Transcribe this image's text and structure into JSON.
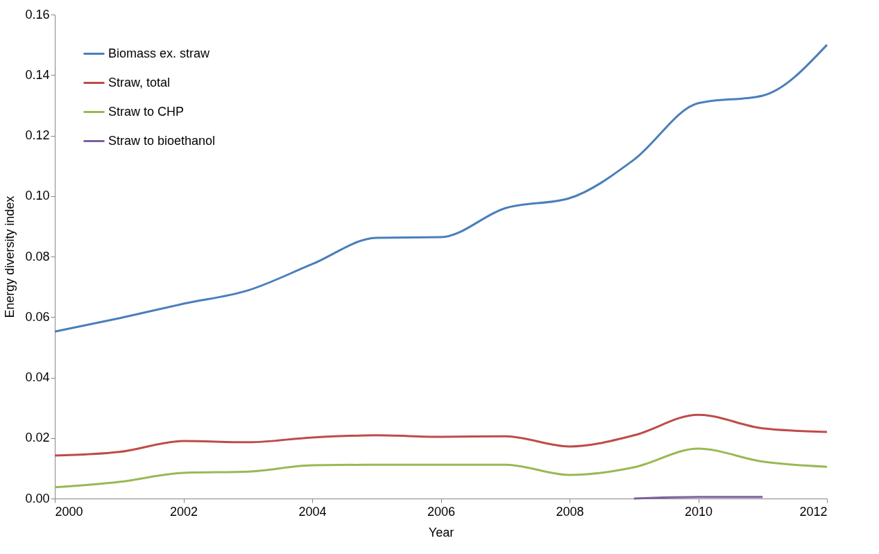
{
  "chart_data": {
    "type": "line",
    "xlabel": "Year",
    "ylabel": "Energy diversity index",
    "x": [
      2000,
      2001,
      2002,
      2003,
      2004,
      2005,
      2006,
      2007,
      2008,
      2009,
      2010,
      2011,
      2012
    ],
    "series": [
      {
        "name": "Biomass ex. straw",
        "color": "#4a7ebb",
        "values": [
          0.0552,
          0.0596,
          0.0644,
          0.0688,
          0.0775,
          0.0862,
          0.0864,
          0.096,
          0.0993,
          0.112,
          0.1307,
          0.1332,
          0.15
        ]
      },
      {
        "name": "Straw, total",
        "color": "#be4b48",
        "values": [
          0.0142,
          0.0154,
          0.019,
          0.0186,
          0.0202,
          0.0209,
          0.0204,
          0.0206,
          0.0172,
          0.0209,
          0.0277,
          0.0232,
          0.022
        ]
      },
      {
        "name": "Straw to CHP",
        "color": "#98b954",
        "values": [
          0.0037,
          0.0055,
          0.0085,
          0.0089,
          0.011,
          0.0112,
          0.0112,
          0.0112,
          0.0078,
          0.0103,
          0.0165,
          0.0122,
          0.0105
        ]
      },
      {
        "name": "Straw to bioethanol",
        "color": "#7d60a0",
        "values": [
          null,
          null,
          null,
          null,
          null,
          null,
          null,
          null,
          null,
          0.0,
          0.0005,
          0.0005,
          null
        ]
      }
    ],
    "xlim": [
      2000,
      2012
    ],
    "xticks": [
      2000,
      2002,
      2004,
      2006,
      2008,
      2010,
      2012
    ],
    "ylim": [
      0,
      0.16
    ],
    "yticks": [
      {
        "value": 0,
        "label": "0.00"
      },
      0.02,
      0.04,
      0.06,
      0.08,
      {
        "value": 0.1,
        "label": "0.10"
      },
      0.12,
      0.14,
      0.16
    ],
    "grid": false,
    "legend": "top left",
    "marker": "none",
    "line_style": "solid"
  }
}
